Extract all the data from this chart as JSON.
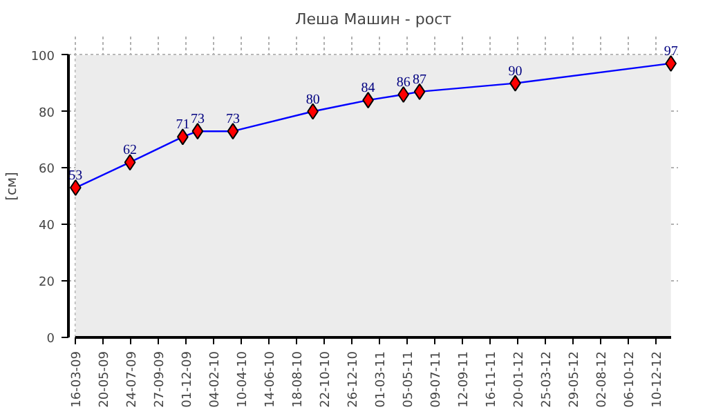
{
  "chart_data": {
    "type": "line",
    "title": "Леша Машин - рост",
    "ylabel": "[см]",
    "x": [
      "2009-03-16",
      "2009-07-22",
      "2009-11-23",
      "2009-12-28",
      "2010-03-21",
      "2010-09-25",
      "2011-02-02",
      "2011-04-26",
      "2011-06-03",
      "2012-01-14",
      "2013-01-14"
    ],
    "series": [
      {
        "color": "#0000ff",
        "values": [
          53,
          62,
          71,
          73,
          73,
          80,
          84,
          86,
          87,
          90,
          97
        ]
      }
    ],
    "marker": "diamond",
    "data_labels": true,
    "grid": true,
    "ylim": [
      0,
      100
    ],
    "yticks": [
      0,
      20,
      40,
      60,
      80,
      100
    ],
    "xlim": [
      "2009-03-16",
      "2013-01-14"
    ],
    "xticks": [
      {
        "value": "2009-03-16",
        "label": "16-03-09"
      },
      {
        "value": "2009-05-20",
        "label": "20-05-09"
      },
      {
        "value": "2009-07-24",
        "label": "24-07-09"
      },
      {
        "value": "2009-09-27",
        "label": "27-09-09"
      },
      {
        "value": "2009-12-01",
        "label": "01-12-09"
      },
      {
        "value": "2010-02-04",
        "label": "04-02-10"
      },
      {
        "value": "2010-04-10",
        "label": "10-04-10"
      },
      {
        "value": "2010-06-14",
        "label": "14-06-10"
      },
      {
        "value": "2010-08-18",
        "label": "18-08-10"
      },
      {
        "value": "2010-10-22",
        "label": "22-10-10"
      },
      {
        "value": "2010-12-26",
        "label": "26-12-10"
      },
      {
        "value": "2011-03-01",
        "label": "01-03-11"
      },
      {
        "value": "2011-05-05",
        "label": "05-05-11"
      },
      {
        "value": "2011-07-09",
        "label": "09-07-11"
      },
      {
        "value": "2011-09-12",
        "label": "12-09-11"
      },
      {
        "value": "2011-11-16",
        "label": "16-11-11"
      },
      {
        "value": "2012-01-20",
        "label": "20-01-12"
      },
      {
        "value": "2012-03-25",
        "label": "25-03-12"
      },
      {
        "value": "2012-05-29",
        "label": "29-05-12"
      },
      {
        "value": "2012-08-02",
        "label": "02-08-12"
      },
      {
        "value": "2012-10-06",
        "label": "06-10-12"
      },
      {
        "value": "2012-12-10",
        "label": "10-12-12"
      }
    ]
  }
}
